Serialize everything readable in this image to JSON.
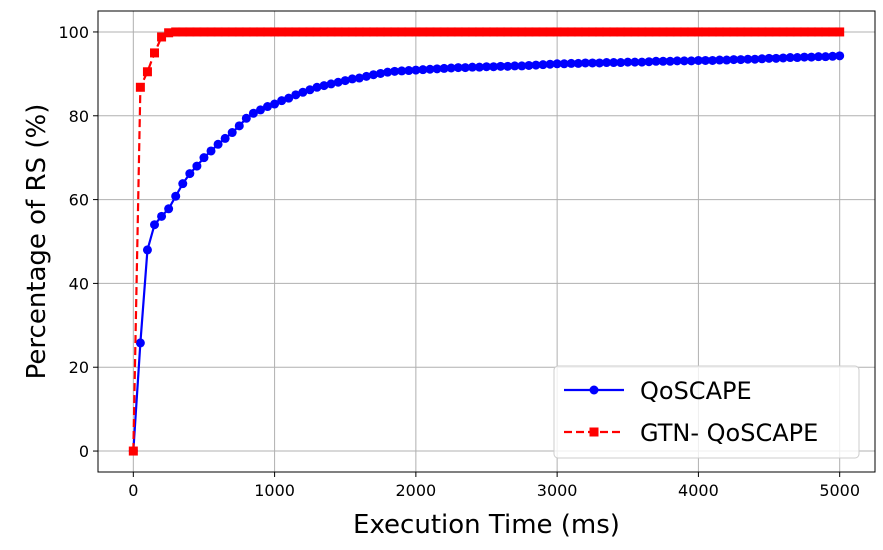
{
  "chart_data": {
    "type": "line",
    "title": "",
    "xlabel": "Execution Time (ms)",
    "ylabel": "Percentage of RS (%)",
    "xlim": [
      -250,
      5250
    ],
    "ylim": [
      -5,
      105
    ],
    "xticks": [
      0,
      1000,
      2000,
      3000,
      4000,
      5000
    ],
    "yticks": [
      0,
      20,
      40,
      60,
      80,
      100
    ],
    "grid": true,
    "legend_position": "lower-right",
    "series": [
      {
        "name": "QoSCAPE",
        "color": "#0000ff",
        "line_style": "solid",
        "marker": "circle",
        "x": [
          0,
          50,
          100,
          150,
          200,
          250,
          300,
          350,
          400,
          450,
          500,
          550,
          600,
          650,
          700,
          750,
          800,
          850,
          900,
          950,
          1000,
          1050,
          1100,
          1150,
          1200,
          1250,
          1300,
          1350,
          1400,
          1450,
          1500,
          1550,
          1600,
          1650,
          1700,
          1750,
          1800,
          1850,
          1900,
          1950,
          2000,
          2050,
          2100,
          2150,
          2200,
          2250,
          2300,
          2350,
          2400,
          2450,
          2500,
          2550,
          2600,
          2650,
          2700,
          2750,
          2800,
          2850,
          2900,
          2950,
          3000,
          3050,
          3100,
          3150,
          3200,
          3250,
          3300,
          3350,
          3400,
          3450,
          3500,
          3550,
          3600,
          3650,
          3700,
          3750,
          3800,
          3850,
          3900,
          3950,
          4000,
          4050,
          4100,
          4150,
          4200,
          4250,
          4300,
          4350,
          4400,
          4450,
          4500,
          4550,
          4600,
          4650,
          4700,
          4750,
          4800,
          4850,
          4900,
          4950,
          5000
        ],
        "y": [
          0,
          25.8,
          48,
          54,
          56,
          57.8,
          60.8,
          63.8,
          66.2,
          68,
          70,
          71.6,
          73.2,
          74.6,
          76,
          77.6,
          79.4,
          80.6,
          81.4,
          82.2,
          82.8,
          83.6,
          84.2,
          85,
          85.6,
          86.2,
          86.8,
          87.2,
          87.6,
          88,
          88.4,
          88.8,
          89,
          89.4,
          89.8,
          90.1,
          90.4,
          90.6,
          90.7,
          90.8,
          90.9,
          91,
          91.1,
          91.2,
          91.3,
          91.4,
          91.5,
          91.5,
          91.6,
          91.6,
          91.7,
          91.7,
          91.8,
          91.8,
          91.9,
          91.9,
          92,
          92.1,
          92.2,
          92.3,
          92.4,
          92.4,
          92.5,
          92.5,
          92.6,
          92.6,
          92.6,
          92.7,
          92.7,
          92.7,
          92.8,
          92.8,
          92.8,
          92.9,
          93,
          93,
          93,
          93.1,
          93.1,
          93.1,
          93.2,
          93.2,
          93.2,
          93.3,
          93.3,
          93.4,
          93.4,
          93.5,
          93.5,
          93.6,
          93.7,
          93.7,
          93.8,
          93.9,
          93.9,
          94,
          94,
          94.1,
          94.1,
          94.2,
          94.3
        ]
      },
      {
        "name": "GTN- QoSCAPE",
        "color": "#ff0000",
        "line_style": "dashed",
        "marker": "square",
        "x": [
          0,
          50,
          100,
          150,
          200,
          250,
          300,
          350,
          400,
          450,
          500,
          550,
          600,
          650,
          700,
          750,
          800,
          850,
          900,
          950,
          1000,
          1050,
          1100,
          1150,
          1200,
          1250,
          1300,
          1350,
          1400,
          1450,
          1500,
          1550,
          1600,
          1650,
          1700,
          1750,
          1800,
          1850,
          1900,
          1950,
          2000,
          2050,
          2100,
          2150,
          2200,
          2250,
          2300,
          2350,
          2400,
          2450,
          2500,
          2550,
          2600,
          2650,
          2700,
          2750,
          2800,
          2850,
          2900,
          2950,
          3000,
          3050,
          3100,
          3150,
          3200,
          3250,
          3300,
          3350,
          3400,
          3450,
          3500,
          3550,
          3600,
          3650,
          3700,
          3750,
          3800,
          3850,
          3900,
          3950,
          4000,
          4050,
          4100,
          4150,
          4200,
          4250,
          4300,
          4350,
          4400,
          4450,
          4500,
          4550,
          4600,
          4650,
          4700,
          4750,
          4800,
          4850,
          4900,
          4950,
          5000
        ],
        "y": [
          0,
          86.8,
          90.5,
          95,
          98.8,
          99.8,
          100,
          100,
          100,
          100,
          100,
          100,
          100,
          100,
          100,
          100,
          100,
          100,
          100,
          100,
          100,
          100,
          100,
          100,
          100,
          100,
          100,
          100,
          100,
          100,
          100,
          100,
          100,
          100,
          100,
          100,
          100,
          100,
          100,
          100,
          100,
          100,
          100,
          100,
          100,
          100,
          100,
          100,
          100,
          100,
          100,
          100,
          100,
          100,
          100,
          100,
          100,
          100,
          100,
          100,
          100,
          100,
          100,
          100,
          100,
          100,
          100,
          100,
          100,
          100,
          100,
          100,
          100,
          100,
          100,
          100,
          100,
          100,
          100,
          100,
          100,
          100,
          100,
          100,
          100,
          100,
          100,
          100,
          100,
          100,
          100,
          100,
          100,
          100,
          100,
          100,
          100,
          100,
          100,
          100,
          100
        ]
      }
    ]
  }
}
